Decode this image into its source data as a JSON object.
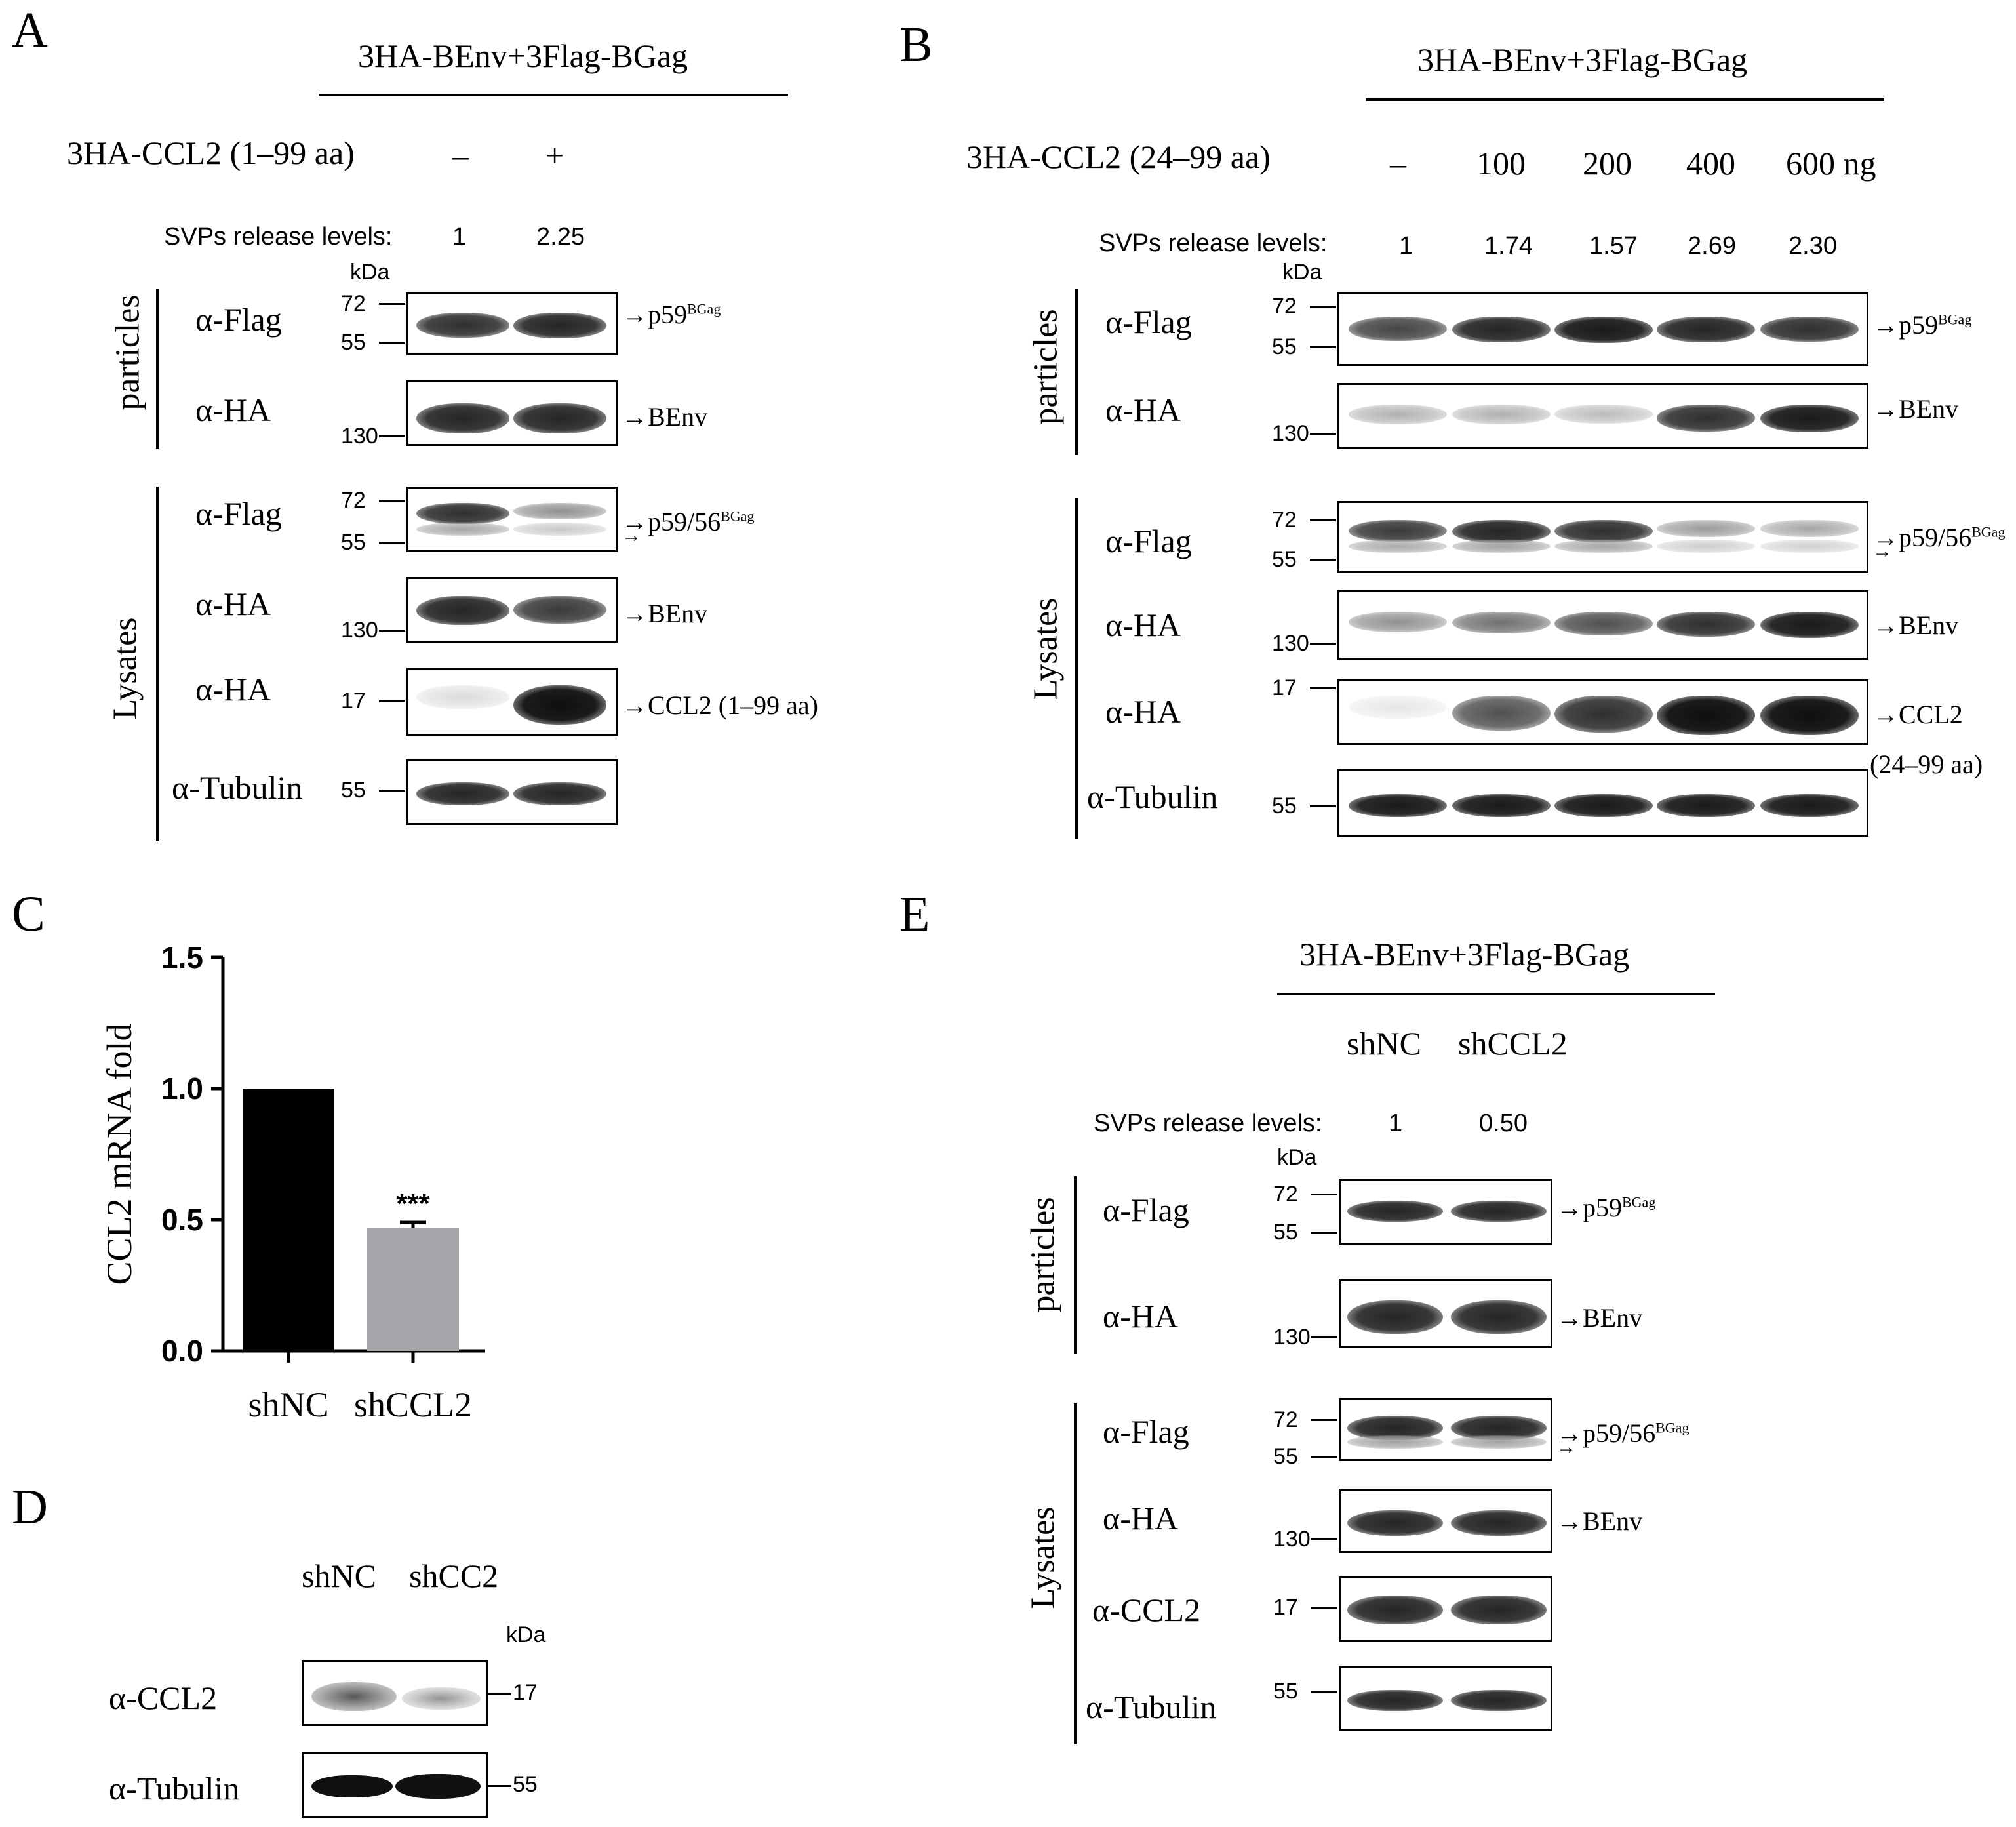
{
  "panels": {
    "A": {
      "letter": "A",
      "header": "3HA-BEnv+3Flag-BGag",
      "condition_label": "3HA-CCL2 (1–99 aa)",
      "lanes": [
        "–",
        "+"
      ],
      "svp_label": "SVPs release levels:",
      "svp_values": [
        "1",
        "2.25"
      ],
      "kda": "kDa",
      "group_particles": "particles",
      "group_lysates": "Lysates",
      "rows": [
        {
          "antibody": "α-Flag",
          "markers": [
            "72",
            "55"
          ],
          "band_label": "p59",
          "band_sup": "BGag",
          "intensities": [
            0.85,
            0.9
          ]
        },
        {
          "antibody": "α-HA",
          "markers": [
            "130"
          ],
          "band_label": "BEnv",
          "band_sup": "",
          "intensities": [
            0.9,
            0.9
          ]
        },
        {
          "antibody": "α-Flag",
          "markers": [
            "72",
            "55"
          ],
          "band_label": "p59/56",
          "band_sup": "BGag",
          "intensities": [
            0.85,
            0.4
          ]
        },
        {
          "antibody": "α-HA",
          "markers": [
            "130"
          ],
          "band_label": "BEnv",
          "band_sup": "",
          "intensities": [
            0.9,
            0.8
          ]
        },
        {
          "antibody": "α-HA",
          "markers": [
            "17"
          ],
          "band_label": "CCL2 (1–99 aa)",
          "band_sup": "",
          "intensities": [
            0.05,
            1.0
          ]
        },
        {
          "antibody": "α-Tubulin",
          "markers": [
            "55"
          ],
          "band_label": "",
          "band_sup": "",
          "intensities": [
            0.9,
            0.9
          ]
        }
      ]
    },
    "B": {
      "letter": "B",
      "header": "3HA-BEnv+3Flag-BGag",
      "condition_label": "3HA-CCL2 (24–99 aa)",
      "lanes": [
        "–",
        "100",
        "200",
        "400",
        "600 ng"
      ],
      "svp_label": "SVPs release levels:",
      "svp_values": [
        "1",
        "1.74",
        "1.57",
        "2.69",
        "2.30"
      ],
      "kda": "kDa",
      "group_particles": "particles",
      "group_lysates": "Lysates",
      "rows": [
        {
          "antibody": "α-Flag",
          "markers": [
            "72",
            "55"
          ],
          "band_label": "p59",
          "band_sup": "BGag",
          "intensities": [
            0.75,
            0.9,
            0.95,
            0.9,
            0.85
          ]
        },
        {
          "antibody": "α-HA",
          "markers": [
            "130"
          ],
          "band_label": "BEnv",
          "band_sup": "",
          "intensities": [
            0.25,
            0.25,
            0.2,
            0.85,
            0.95
          ]
        },
        {
          "antibody": "α-Flag",
          "markers": [
            "72",
            "55"
          ],
          "band_label": "p59/56",
          "band_sup": "BGag",
          "intensities": [
            0.8,
            0.9,
            0.85,
            0.35,
            0.3
          ]
        },
        {
          "antibody": "α-HA",
          "markers": [
            "130"
          ],
          "band_label": "BEnv",
          "band_sup": "",
          "intensities": [
            0.4,
            0.55,
            0.7,
            0.85,
            0.95
          ]
        },
        {
          "antibody": "α-HA",
          "markers": [
            "17"
          ],
          "band_label": "CCL2",
          "band_sup": "",
          "intensities": [
            0.0,
            0.7,
            0.85,
            1.0,
            1.0
          ]
        },
        {
          "antibody": "α-Tubulin",
          "markers": [
            "55"
          ],
          "band_label": "",
          "band_sup": "",
          "intensities": [
            0.95,
            0.95,
            0.95,
            0.95,
            0.95
          ]
        }
      ],
      "ccl2_sub": "(24–99 aa)"
    },
    "C": {
      "letter": "C"
    },
    "D": {
      "letter": "D",
      "lanes": [
        "shNC",
        "shCC2"
      ],
      "kda": "kDa",
      "rows": [
        {
          "antibody": "α-CCL2",
          "marker": "17"
        },
        {
          "antibody": "α-Tubulin",
          "marker": "55"
        }
      ]
    },
    "E": {
      "letter": "E",
      "header": "3HA-BEnv+3Flag-BGag",
      "lanes": [
        "shNC",
        "shCCL2"
      ],
      "svp_label": "SVPs release levels:",
      "svp_values": [
        "1",
        "0.50"
      ],
      "kda": "kDa",
      "group_particles": "particles",
      "group_lysates": "Lysates",
      "rows": [
        {
          "antibody": "α-Flag",
          "markers": [
            "72",
            "55"
          ],
          "band_label": "p59",
          "band_sup": "BGag"
        },
        {
          "antibody": "α-HA",
          "markers": [
            "130"
          ],
          "band_label": "BEnv",
          "band_sup": ""
        },
        {
          "antibody": "α-Flag",
          "markers": [
            "72",
            "55"
          ],
          "band_label": "p59/56",
          "band_sup": "BGag"
        },
        {
          "antibody": "α-HA",
          "markers": [
            "130"
          ],
          "band_label": "BEnv",
          "band_sup": ""
        },
        {
          "antibody": "α-CCL2",
          "markers": [
            "17"
          ],
          "band_label": "",
          "band_sup": ""
        },
        {
          "antibody": "α-Tubulin",
          "markers": [
            "55"
          ],
          "band_label": "",
          "band_sup": ""
        }
      ]
    }
  },
  "chart_data": {
    "type": "bar",
    "categories": [
      "shNC",
      "shCCL2"
    ],
    "values": [
      1.0,
      0.47
    ],
    "errors": [
      0.0,
      0.02
    ],
    "significance": [
      "",
      "***"
    ],
    "ylabel": "CCL2 mRNA fold",
    "xlabel": "",
    "ylim": [
      0,
      1.5
    ],
    "yticks": [
      "0.0",
      "0.5",
      "1.0",
      "1.5"
    ],
    "colors": [
      "#000000",
      "#a6a6ab"
    ],
    "grid": false
  }
}
